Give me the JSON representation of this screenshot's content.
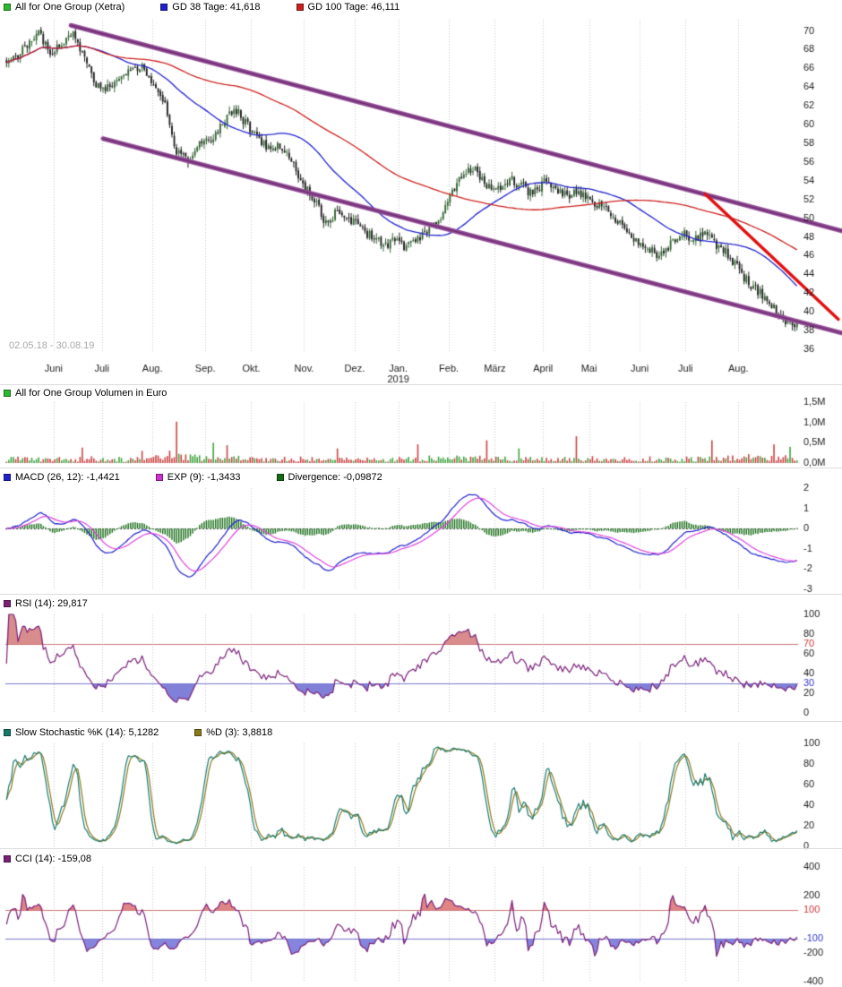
{
  "panels": {
    "price": {
      "legend": [
        {
          "label": "All for One Group (Xetra)",
          "color": "#2eb82e"
        },
        {
          "label": "GD 38 Tage: 41,618",
          "color": "#2020cc"
        },
        {
          "label": "GD 100 Tage: 46,111",
          "color": "#cc2020"
        }
      ],
      "date_range_label": "02.05.18 - 30.08.19",
      "y_ticks": [
        70,
        68,
        66,
        64,
        62,
        60,
        58,
        56,
        54,
        52,
        50,
        48,
        46,
        44,
        42,
        40,
        38,
        36
      ]
    },
    "volume": {
      "legend": [
        {
          "label": "All for One Group Volumen in Euro",
          "color": "#2eb82e"
        }
      ],
      "y_ticks": [
        {
          "v": 1.5,
          "label": "1,5M"
        },
        {
          "v": 1.0,
          "label": "1,0M"
        },
        {
          "v": 0.5,
          "label": "0,5M"
        },
        {
          "v": 0.0,
          "label": "0,0M"
        }
      ]
    },
    "macd": {
      "legend": [
        {
          "label": "MACD (26, 12): -1,4421",
          "color": "#2020cc"
        },
        {
          "label": "EXP (9): -1,3433",
          "color": "#cc33cc"
        },
        {
          "label": "Divergence: -0,09872",
          "color": "#156b15"
        }
      ],
      "y_ticks": [
        2,
        1,
        0,
        -1,
        -2,
        -3
      ]
    },
    "rsi": {
      "legend": [
        {
          "label": "RSI (14): 29,817",
          "color": "#7a2179"
        }
      ],
      "y_ticks": [
        {
          "v": 100,
          "label": "100"
        },
        {
          "v": 80,
          "label": "80"
        },
        {
          "v": 70,
          "label": "70",
          "color": "#cc3333"
        },
        {
          "v": 60,
          "label": "60"
        },
        {
          "v": 40,
          "label": "40"
        },
        {
          "v": 30,
          "label": "30",
          "color": "#3333cc"
        },
        {
          "v": 20,
          "label": "20"
        },
        {
          "v": 0,
          "label": "0"
        }
      ],
      "ref_lines": [
        {
          "v": 70,
          "color": "#cc7777"
        },
        {
          "v": 30,
          "color": "#7777cc"
        }
      ],
      "fill_below": {
        "threshold": 30,
        "color": "#8080d8"
      },
      "fill_above": {
        "threshold": 70,
        "color": "#d98c8c"
      }
    },
    "stoch": {
      "legend": [
        {
          "label": "Slow Stochastic %K (14): 5,1282",
          "color": "#167a6b"
        },
        {
          "label": "%D (3): 3,8818",
          "color": "#8a7a1a"
        }
      ],
      "y_ticks": [
        100,
        80,
        60,
        40,
        20,
        0
      ]
    },
    "cci": {
      "legend": [
        {
          "label": "CCI (14): -159,08",
          "color": "#7a2179"
        }
      ],
      "y_ticks": [
        {
          "v": 400,
          "label": "400"
        },
        {
          "v": 200,
          "label": "200"
        },
        {
          "v": 100,
          "label": "100",
          "color": "#cc3333"
        },
        {
          "v": -100,
          "label": "-100",
          "color": "#3333cc"
        },
        {
          "v": -200,
          "label": "-200"
        },
        {
          "v": -400,
          "label": "-400"
        }
      ],
      "ref_lines": [
        {
          "v": 100,
          "color": "#cc7777"
        },
        {
          "v": -100,
          "color": "#7777cc"
        }
      ],
      "fill_below": {
        "threshold": -100,
        "color": "#8585dd"
      },
      "fill_above": {
        "threshold": 100,
        "color": "#e08585"
      }
    }
  },
  "chart_data": {
    "type": "candlestick",
    "title": "All for One Group (Xetra)",
    "date_range": "02.05.18 - 30.08.19",
    "n_days": 345,
    "price_axis": {
      "min": 35.8,
      "max": 71.2
    },
    "weekly_close": [
      67.0,
      68.5,
      69.6,
      67.8,
      68.4,
      69.8,
      67.0,
      64.2,
      63.8,
      65.0,
      65.8,
      66.2,
      64.5,
      62.0,
      57.0,
      56.3,
      57.8,
      58.3,
      60.0,
      61.8,
      60.2,
      58.6,
      57.4,
      57.8,
      56.2,
      53.6,
      52.0,
      49.5,
      50.8,
      49.8,
      49.0,
      48.0,
      47.2,
      47.5,
      46.9,
      47.8,
      48.8,
      50.2,
      52.8,
      55.0,
      55.2,
      53.6,
      53.0,
      54.2,
      53.4,
      52.6,
      53.8,
      53.0,
      52.4,
      52.8,
      52.0,
      51.2,
      50.2,
      49.0,
      47.6,
      47.0,
      45.8,
      47.2,
      48.4,
      47.6,
      48.5,
      47.0,
      46.2,
      44.3,
      42.8,
      41.8,
      40.3,
      39.0,
      38.3
    ],
    "months": [
      {
        "label": "Juni",
        "day": 21
      },
      {
        "label": "Juli",
        "day": 42
      },
      {
        "label": "Aug.",
        "day": 64
      },
      {
        "label": "Sep.",
        "day": 87
      },
      {
        "label": "Okt.",
        "day": 107
      },
      {
        "label": "Nov.",
        "day": 130
      },
      {
        "label": "Dez.",
        "day": 152
      },
      {
        "label": "Jan.",
        "day": 171
      },
      {
        "label": "Feb.",
        "day": 193
      },
      {
        "label": "März",
        "day": 213
      },
      {
        "label": "April",
        "day": 234
      },
      {
        "label": "Mai",
        "day": 254
      },
      {
        "label": "Juni",
        "day": 276
      },
      {
        "label": "Juli",
        "day": 296
      },
      {
        "label": "Aug.",
        "day": 319
      }
    ],
    "year_row": {
      "label": "2019",
      "under_month_index": 7
    },
    "moving_averages": [
      {
        "name": "GD 38 Tage",
        "period": 38,
        "value": 41.618,
        "color": "#2020cc"
      },
      {
        "name": "GD 100 Tage",
        "period": 100,
        "value": 46.111,
        "color": "#cc2020"
      }
    ],
    "trendlines": [
      {
        "name": "channel-upper",
        "from_day": 28,
        "from_price": 70.6,
        "to_day": 364,
        "to_price": 48.6,
        "color": "#934b97",
        "width": 5
      },
      {
        "name": "channel-lower",
        "from_day": 42,
        "from_price": 58.5,
        "to_day": 364,
        "to_price": 37.7,
        "color": "#934b97",
        "width": 5
      },
      {
        "name": "downtrend-line",
        "from_day": 304,
        "from_price": 52.6,
        "to_day": 362,
        "to_price": 39.2,
        "color": "#e01010",
        "width": 3.5
      }
    ],
    "volume": {
      "unit": "Euro",
      "ylim": [
        0,
        1.5
      ],
      "weekly_typical": [
        0.09,
        0.11,
        0.1,
        0.08,
        0.09,
        0.1,
        0.09,
        0.1,
        0.08,
        0.09,
        0.08,
        0.09,
        0.09,
        0.12,
        0.2,
        0.16,
        0.13,
        0.12,
        0.13,
        0.12,
        0.11,
        0.11,
        0.1,
        0.1,
        0.1,
        0.1,
        0.09,
        0.1,
        0.09,
        0.09,
        0.08,
        0.09,
        0.08,
        0.08,
        0.1,
        0.1,
        0.11,
        0.1,
        0.12,
        0.13,
        0.12,
        0.11,
        0.1,
        0.1,
        0.09,
        0.1,
        0.09,
        0.09,
        0.1,
        0.09,
        0.09,
        0.1,
        0.09,
        0.09,
        0.1,
        0.09,
        0.1,
        0.09,
        0.09,
        0.1,
        0.1,
        0.11,
        0.11,
        0.12,
        0.13,
        0.12,
        0.13,
        0.12,
        0.12
      ],
      "spikes": [
        [
          33,
          0.38,
          "r"
        ],
        [
          59,
          0.3,
          "r"
        ],
        [
          74,
          1.02,
          "r"
        ],
        [
          90,
          0.5,
          "g"
        ],
        [
          96,
          0.44,
          "r"
        ],
        [
          144,
          0.36,
          "r"
        ],
        [
          179,
          0.46,
          "r"
        ],
        [
          209,
          0.56,
          "r"
        ],
        [
          223,
          0.36,
          "g"
        ],
        [
          248,
          0.66,
          "r"
        ],
        [
          307,
          0.56,
          "r"
        ],
        [
          334,
          0.46,
          "r"
        ],
        [
          341,
          0.4,
          "g"
        ]
      ]
    },
    "indicators": {
      "macd": {
        "params": [
          26,
          12
        ],
        "value": -1.4421,
        "signal_period": 9,
        "signal_value": -1.3433,
        "divergence": -0.09872,
        "ylim": [
          -3,
          2
        ]
      },
      "rsi": {
        "period": 14,
        "value": 29.817,
        "upper": 70,
        "lower": 30,
        "ylim": [
          0,
          100
        ]
      },
      "stoch_k": {
        "period": 14,
        "value": 5.1282
      },
      "stoch_d": {
        "period": 3,
        "value": 3.8818
      },
      "stoch_ylim": [
        0,
        100
      ],
      "cci": {
        "period": 14,
        "value": -159.08,
        "upper": 100,
        "lower": -100,
        "ylim": [
          -400,
          400
        ]
      },
      "gd38": 41.618,
      "gd100": 46.111
    },
    "style": {
      "candle_up": "#336633",
      "candle_down": "#1f1f1f",
      "volume_up": "#3fa33f",
      "volume_down": "#c94444",
      "macd_line": "#2020cc",
      "macd_signal": "#dd44dd",
      "macd_hist": "#156b15",
      "rsi_line": "#7a2179",
      "stoch_k": "#1d7a6e",
      "stoch_d": "#8a7a1f",
      "cci_line": "#7a2179",
      "gd38": "#2020cc",
      "gd100": "#cc2020",
      "grid": "#c8c8c8",
      "axis_text": "#1a1a1a"
    }
  }
}
